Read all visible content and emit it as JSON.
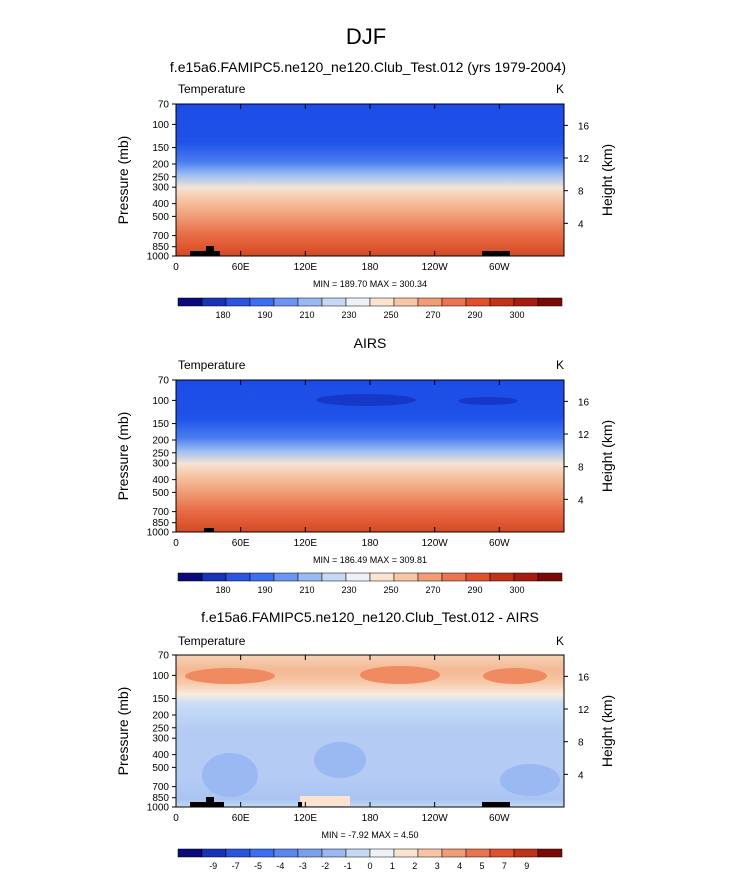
{
  "figure_title": "DJF",
  "chart_data": [
    {
      "type": "heatmap",
      "title": "f.e15a6.FAMIPC5.ne120_ne120.Club_Test.012 (yrs 1979-2004)",
      "variable": "Temperature",
      "units": "K",
      "ylabel": "Pressure (mb)",
      "ylabel_right": "Height (km)",
      "pressure_ticks": [
        "70",
        "100",
        "150",
        "200",
        "250",
        "300",
        "400",
        "500",
        "700",
        "850",
        "1000"
      ],
      "height_ticks": [
        "4",
        "8",
        "12",
        "16"
      ],
      "x_ticks": [
        "0",
        "60E",
        "120E",
        "180",
        "120W",
        "60W"
      ],
      "stats": "MIN = 189.70  MAX = 300.34",
      "colorbar_labels": [
        "180",
        "190",
        "210",
        "230",
        "250",
        "270",
        "290",
        "300"
      ],
      "colorbar_colors": [
        "#0a0a7a",
        "#1833b8",
        "#2b55e0",
        "#3c6ef2",
        "#6a95f0",
        "#9ab8f2",
        "#c5d9f5",
        "#eef2f8",
        "#fbe3cf",
        "#f8c6a4",
        "#f29c75",
        "#ea744f",
        "#e0502d",
        "#c03318",
        "#a61c0e",
        "#7a0a08"
      ],
      "description_levels": {
        "70": "#1c4ce6",
        "100": "#1c4ce6",
        "150": "#4a7df0",
        "200": "#9fc0f2",
        "250": "#c8dcf6",
        "300": "#f6e8dc",
        "400": "#f7c4a2",
        "500": "#f0a07a",
        "700": "#e8704a",
        "850": "#e05a32",
        "1000": "#d24a26"
      }
    },
    {
      "type": "heatmap",
      "title": "AIRS",
      "variable": "Temperature",
      "units": "K",
      "ylabel": "Pressure (mb)",
      "ylabel_right": "Height (km)",
      "pressure_ticks": [
        "70",
        "100",
        "150",
        "200",
        "250",
        "300",
        "400",
        "500",
        "700",
        "850",
        "1000"
      ],
      "height_ticks": [
        "4",
        "8",
        "12",
        "16"
      ],
      "x_ticks": [
        "0",
        "60E",
        "120E",
        "180",
        "120W",
        "60W"
      ],
      "stats": "MIN = 186.49  MAX = 309.81",
      "colorbar_labels": [
        "180",
        "190",
        "210",
        "230",
        "250",
        "270",
        "290",
        "300"
      ],
      "colorbar_colors": [
        "#0a0a7a",
        "#1833b8",
        "#2b55e0",
        "#3c6ef2",
        "#6a95f0",
        "#9ab8f2",
        "#c5d9f5",
        "#eef2f8",
        "#fbe3cf",
        "#f8c6a4",
        "#f29c75",
        "#ea744f",
        "#e0502d",
        "#c03318",
        "#a61c0e",
        "#7a0a08"
      ]
    },
    {
      "type": "heatmap",
      "title": "f.e15a6.FAMIPC5.ne120_ne120.Club_Test.012 - AIRS",
      "variable": "Temperature",
      "units": "K",
      "ylabel": "Pressure (mb)",
      "ylabel_right": "Height (km)",
      "pressure_ticks": [
        "70",
        "100",
        "150",
        "200",
        "250",
        "300",
        "400",
        "500",
        "700",
        "850",
        "1000"
      ],
      "height_ticks": [
        "4",
        "8",
        "12",
        "16"
      ],
      "x_ticks": [
        "0",
        "60E",
        "120E",
        "180",
        "120W",
        "60W"
      ],
      "stats": "MIN = -7.92  MAX =  4.50",
      "colorbar_labels": [
        "-9",
        "-7",
        "-5",
        "-4",
        "-3",
        "-2",
        "-1",
        "0",
        "1",
        "2",
        "3",
        "4",
        "5",
        "7",
        "9"
      ],
      "colorbar_colors": [
        "#0a0a7a",
        "#1833b8",
        "#2b55e0",
        "#3c6ef2",
        "#5a85f0",
        "#7aa0f0",
        "#9ab8f2",
        "#c5d9f5",
        "#eef2f8",
        "#fbe3cf",
        "#f8c6a4",
        "#f29c75",
        "#ea744f",
        "#e0502d",
        "#c03318",
        "#7a0a08"
      ]
    }
  ]
}
